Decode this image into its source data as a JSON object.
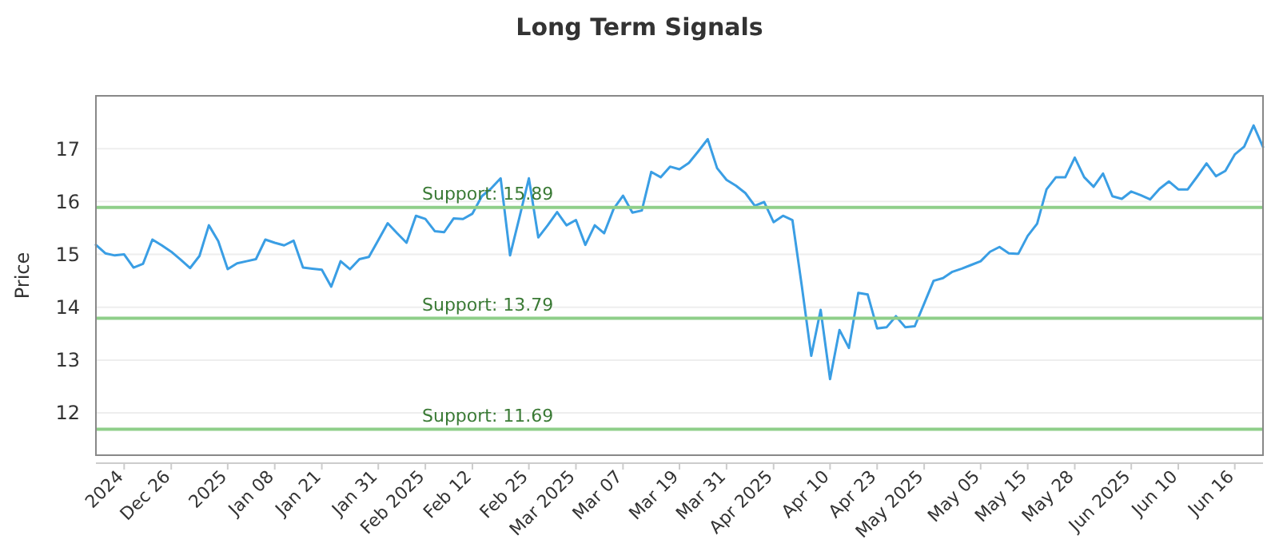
{
  "chart_data": {
    "type": "line",
    "title": "Long Term Signals",
    "ylabel": "Price",
    "categories": [
      null,
      null,
      null,
      "2024",
      null,
      null,
      null,
      null,
      "Dec 26",
      null,
      null,
      null,
      null,
      null,
      "2025",
      null,
      null,
      null,
      null,
      "Jan 08",
      null,
      null,
      null,
      null,
      "Jan 21",
      null,
      null,
      null,
      null,
      null,
      "Jan 31",
      null,
      null,
      null,
      null,
      "Feb 2025",
      null,
      null,
      null,
      null,
      "Feb 12",
      null,
      null,
      null,
      null,
      null,
      "Feb 25",
      null,
      null,
      null,
      null,
      "Mar 2025",
      null,
      null,
      null,
      null,
      "Mar 07",
      null,
      null,
      null,
      null,
      null,
      "Mar 19",
      null,
      null,
      null,
      null,
      "Mar 31",
      null,
      null,
      null,
      null,
      "Apr 2025",
      null,
      null,
      null,
      null,
      null,
      "Apr 10",
      null,
      null,
      null,
      null,
      "Apr 23",
      null,
      null,
      null,
      null,
      "May 2025",
      null,
      null,
      null,
      null,
      null,
      "May 05",
      null,
      null,
      null,
      null,
      "May 15",
      null,
      null,
      null,
      null,
      "May 28",
      null,
      null,
      null,
      null,
      null,
      "Jun 2025",
      null,
      null,
      null,
      null,
      "Jun 10",
      null,
      null,
      null,
      null,
      null,
      "Jun 16",
      null,
      null,
      null
    ],
    "ylim": [
      11.2,
      18
    ],
    "yticks": [
      12,
      13,
      14,
      15,
      16,
      17
    ],
    "grid": "y",
    "series": [
      {
        "color": "#3a9ee4",
        "values": [
          15.18,
          15.02,
          14.98,
          15.0,
          14.75,
          14.82,
          15.28,
          15.17,
          15.05,
          14.9,
          14.74,
          14.97,
          15.55,
          15.25,
          14.72,
          14.83,
          14.87,
          14.91,
          15.28,
          15.22,
          15.17,
          15.26,
          14.75,
          14.73,
          14.71,
          14.39,
          14.87,
          14.72,
          14.91,
          14.95,
          15.27,
          15.59,
          15.4,
          15.22,
          15.73,
          15.67,
          15.44,
          15.42,
          15.68,
          15.67,
          15.77,
          16.1,
          16.25,
          16.44,
          14.98,
          15.7,
          16.44,
          15.32,
          15.55,
          15.8,
          15.55,
          15.65,
          15.18,
          15.55,
          15.4,
          15.86,
          16.11,
          15.79,
          15.83,
          16.56,
          16.46,
          16.66,
          16.61,
          16.73,
          16.95,
          17.18,
          16.63,
          16.41,
          16.3,
          16.16,
          15.92,
          15.99,
          15.61,
          15.73,
          15.65,
          14.4,
          13.08,
          13.95,
          12.64,
          13.57,
          13.23,
          14.27,
          14.24,
          13.6,
          13.62,
          13.83,
          13.62,
          13.64,
          14.07,
          14.5,
          14.55,
          14.67,
          14.73,
          14.8,
          14.87,
          15.05,
          15.14,
          15.02,
          15.01,
          15.35,
          15.58,
          16.23,
          16.46,
          16.46,
          16.83,
          16.46,
          16.28,
          16.53,
          16.1,
          16.05,
          16.19,
          16.12,
          16.04,
          16.24,
          16.38,
          16.23,
          16.23,
          16.47,
          16.72,
          16.48,
          16.58,
          16.89,
          17.04,
          17.44,
          17.03
        ]
      }
    ],
    "ref_lines": [
      {
        "axis": "y",
        "value": 15.89,
        "label": "Support: 15.89",
        "color": "#8fcf8a"
      },
      {
        "axis": "y",
        "value": 13.79,
        "label": "Support: 13.79",
        "color": "#8fcf8a"
      },
      {
        "axis": "y",
        "value": 11.69,
        "label": "Support: 11.69",
        "color": "#8fcf8a"
      }
    ]
  }
}
